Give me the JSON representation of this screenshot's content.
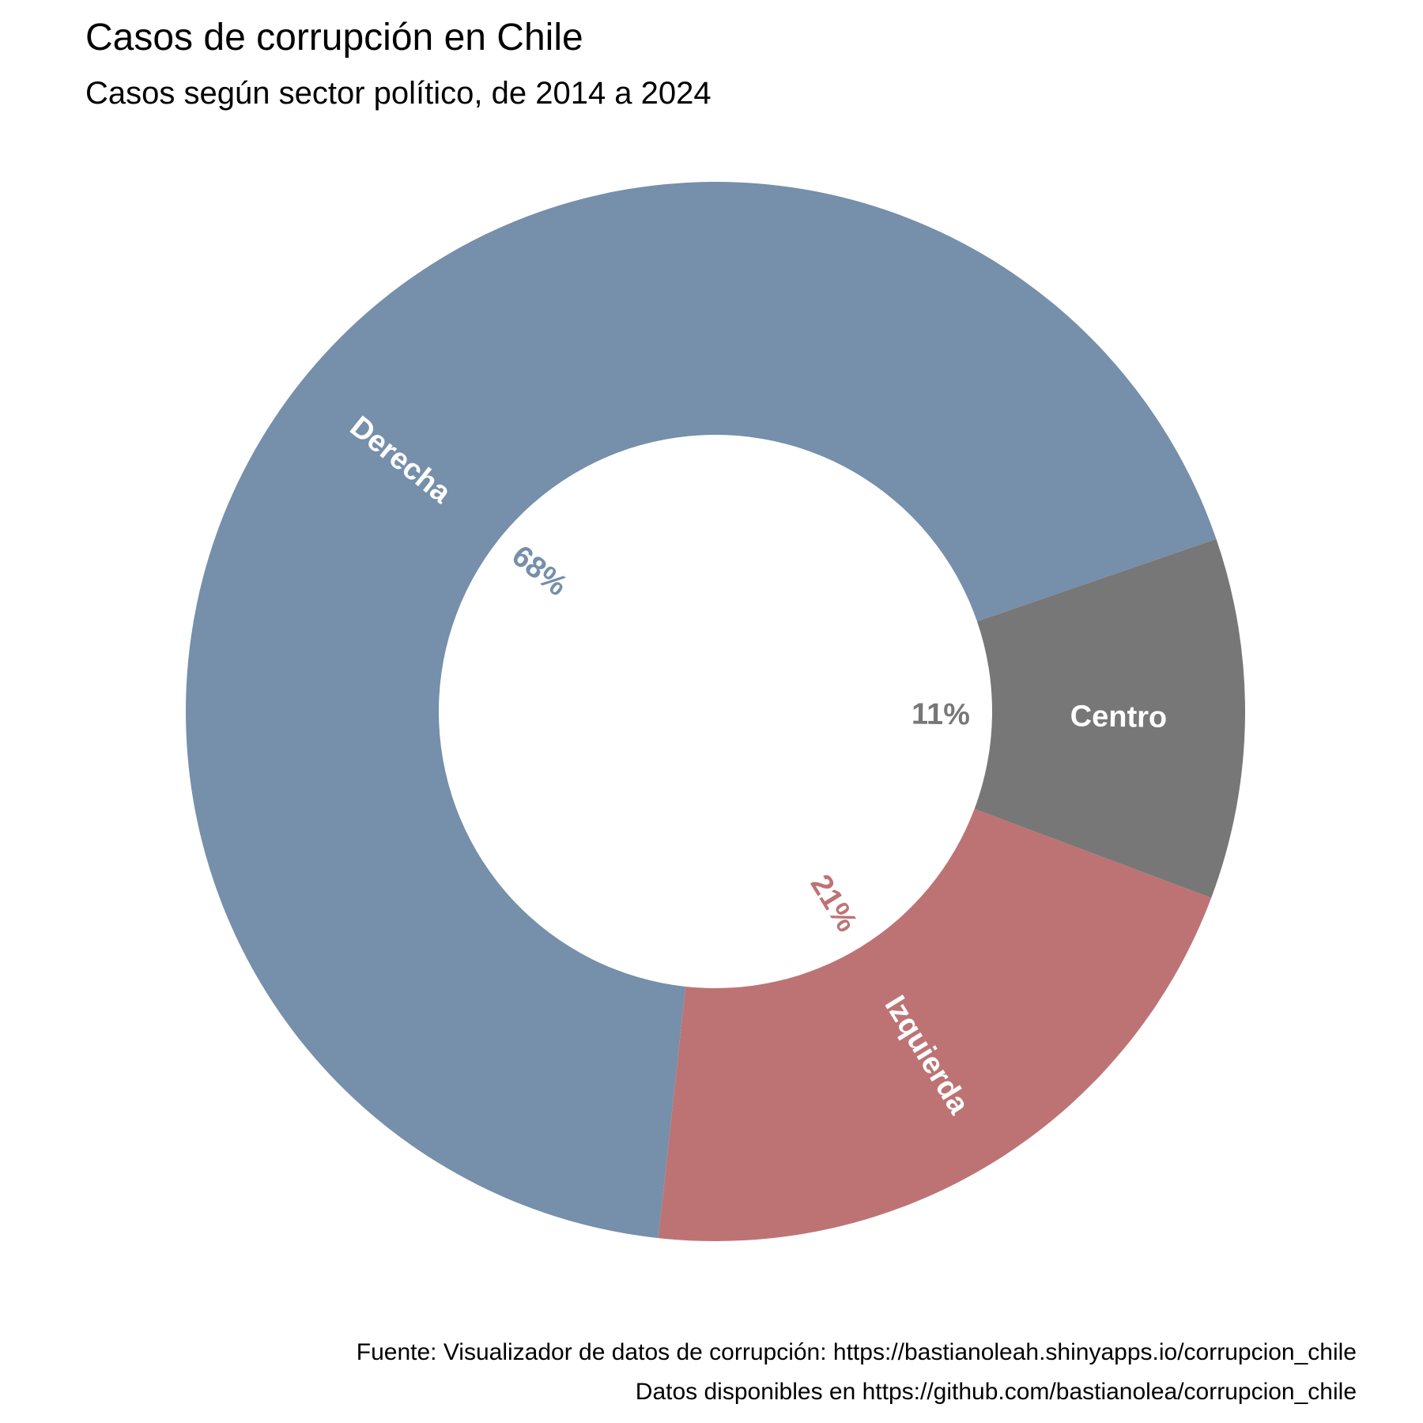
{
  "chart_data": {
    "type": "pie",
    "donut": true,
    "title": "Casos de corrupción en Chile",
    "subtitle": "Casos según sector político, de 2014 a 2024",
    "categories": [
      "Izquierda",
      "Derecha",
      "Centro"
    ],
    "values": [
      21,
      68,
      11
    ],
    "value_labels": [
      "21%",
      "68%",
      "11%"
    ],
    "colors": [
      "#BD7374",
      "#768FAA",
      "#777777"
    ],
    "legend": "none",
    "captions": [
      "Fuente: Visualizador de datos de corrupción: https://bastianoleah.shinyapps.io/corrupcion_chile",
      "Datos disponibles en https://github.com/bastianolea/corrupcion_chile"
    ]
  }
}
